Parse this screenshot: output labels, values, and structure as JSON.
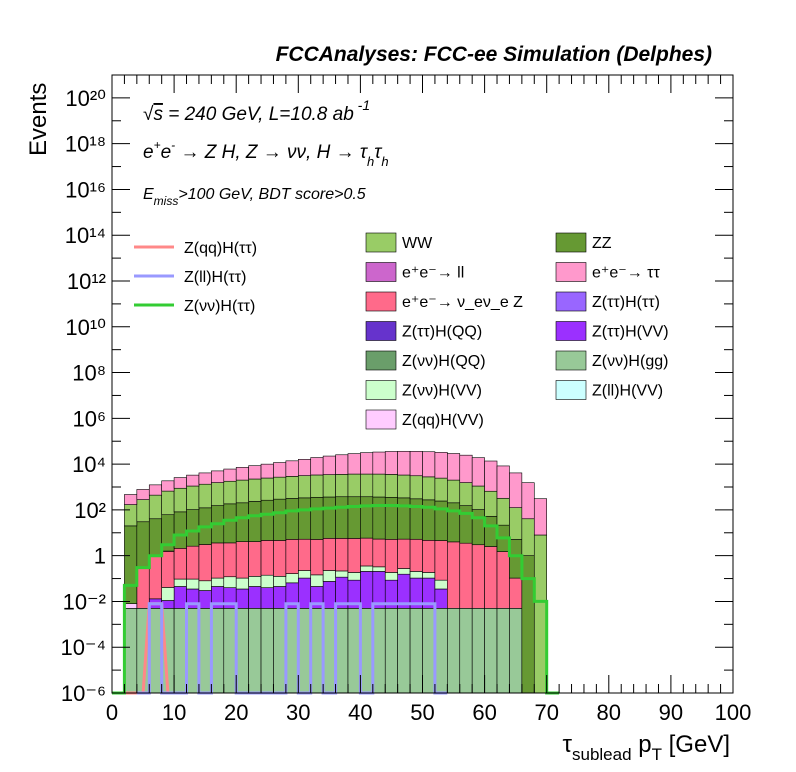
{
  "header": {
    "title": "FCCAnalyses: FCC-ee Simulation (Delphes)"
  },
  "annotations": {
    "line1": "√s = 240 GeV, L=10.8 ab⁻¹",
    "line2": "e⁺e⁻ → Z H, Z → νν, H → τₕτₕ",
    "line3": "E_miss>100 GeV, BDT score>0.5"
  },
  "axes": {
    "ylabel": "Events",
    "xlabel": "τ_sublead p_T [GeV]"
  },
  "chart_data": {
    "type": "area",
    "style": "stacked histogram with overlaid signal lines",
    "title": "FCCAnalyses: FCC-ee Simulation (Delphes)",
    "xlabel": "τ_sublead p_T [GeV]",
    "ylabel": "Events",
    "yscale": "log",
    "xlim": [
      0,
      100
    ],
    "ylim": [
      1e-06,
      1e+21
    ],
    "bin_width": 2,
    "x_ticks": [
      "0",
      "10",
      "20",
      "30",
      "40",
      "50",
      "60",
      "70",
      "80",
      "90",
      "100"
    ],
    "y_ticks": [
      "10⁻⁶",
      "10⁻⁴",
      "10⁻²",
      "1",
      "10²",
      "10⁴",
      "10⁶",
      "10⁸",
      "10¹⁰",
      "10¹²",
      "10¹⁴",
      "10¹⁶",
      "10¹⁸",
      "10²⁰"
    ],
    "stack_series": [
      {
        "name": "Z(νν)H(gg)",
        "color": "#98c998",
        "bin_start": [
          2,
          4,
          6,
          8,
          10,
          12,
          14,
          16,
          18,
          20,
          22,
          24,
          26,
          28,
          30,
          32,
          34,
          36,
          38,
          40,
          42,
          44,
          46,
          48,
          50,
          52,
          54,
          56,
          58,
          60,
          62,
          64
        ],
        "values": [
          0.005,
          0.005,
          0.005,
          0.005,
          0.005,
          0.005,
          0.005,
          0.005,
          0.005,
          0.005,
          0.005,
          0.005,
          0.005,
          0.005,
          0.005,
          0.005,
          0.005,
          0.005,
          0.005,
          0.005,
          0.005,
          0.005,
          0.005,
          0.005,
          0.005,
          0.005,
          0.005,
          0.005,
          0.005,
          0.005,
          0.005,
          0.005
        ]
      },
      {
        "name": "Z(νν)H(QQ)",
        "color": "#6a9e6a",
        "bin_start": [
          2,
          4,
          6,
          8,
          10,
          12,
          14,
          16,
          18,
          20,
          22,
          24,
          26,
          28,
          30,
          32,
          34,
          36,
          38,
          40,
          42,
          44,
          46,
          48,
          50,
          52,
          54,
          56,
          58,
          60,
          62,
          64
        ],
        "values": [
          0,
          0,
          0,
          0,
          0,
          0,
          0,
          0,
          0,
          0,
          0,
          0,
          0,
          0,
          0,
          0,
          0,
          0,
          0,
          0,
          0,
          0,
          0,
          0,
          0,
          0,
          0,
          0,
          0,
          0,
          0,
          0
        ]
      },
      {
        "name": "Z(ττ)H(VV)",
        "color": "#9b30ff",
        "bin_start": [
          6,
          8,
          10,
          12,
          14,
          16,
          18,
          20,
          22,
          24,
          26,
          28,
          30,
          32,
          34,
          36,
          38,
          40,
          42,
          44,
          46,
          48,
          50,
          52
        ],
        "values": [
          0.008,
          0.006,
          0.04,
          0.03,
          0.025,
          0.04,
          0.035,
          0.03,
          0.04,
          0.035,
          0.04,
          0.06,
          0.1,
          0.04,
          0.07,
          0.11,
          0.08,
          0.2,
          0.2,
          0.08,
          0.15,
          0.1,
          0.1,
          0.03
        ]
      },
      {
        "name": "Z(νν)H(VV)",
        "color": "#ccffcc",
        "bin_start": [
          8,
          10,
          12,
          14,
          16,
          18,
          20,
          22,
          24,
          26,
          28,
          30,
          32,
          34,
          36,
          38,
          40,
          42,
          44,
          46,
          48,
          50,
          52
        ],
        "values": [
          0.03,
          0.05,
          0.06,
          0.05,
          0.06,
          0.08,
          0.07,
          0.08,
          0.1,
          0.08,
          0.1,
          0.12,
          0.1,
          0.15,
          0.1,
          0.1,
          0.15,
          0.12,
          0.1,
          0.12,
          0.1,
          0.08,
          0.05
        ]
      },
      {
        "name": "e⁺e⁻→ ν_eν_e Z",
        "color": "#ff6a8a",
        "bin_start": [
          4,
          6,
          8,
          10,
          12,
          14,
          16,
          18,
          20,
          22,
          24,
          26,
          28,
          30,
          32,
          34,
          36,
          38,
          40,
          42,
          44,
          46,
          48,
          50,
          52,
          54,
          56,
          58,
          60,
          62,
          64
        ],
        "values": [
          0.3,
          1,
          1.5,
          2,
          2.5,
          3,
          3.5,
          3.5,
          4,
          4,
          4.5,
          4.5,
          5,
          5,
          5,
          5.5,
          5.5,
          5.5,
          5.5,
          5,
          5,
          5,
          5,
          4.5,
          4.5,
          4,
          3.5,
          3,
          2.5,
          1.5,
          0.1
        ]
      },
      {
        "name": "Z(qq)H(VV)",
        "color": "#ffccff",
        "bin_start": [
          2,
          4,
          8
        ],
        "values": [
          0.003,
          0.01,
          0.05
        ]
      },
      {
        "name": "ZZ",
        "color": "#669933",
        "bin_start": [
          2,
          4,
          6,
          8,
          10,
          12,
          14,
          16,
          18,
          20,
          22,
          24,
          26,
          28,
          30,
          32,
          34,
          36,
          38,
          40,
          42,
          44,
          46,
          48,
          50,
          52,
          54,
          56,
          58,
          60,
          62,
          64,
          66
        ],
        "values": [
          20,
          30,
          40,
          60,
          80,
          100,
          120,
          150,
          180,
          200,
          230,
          260,
          290,
          310,
          330,
          350,
          360,
          370,
          370,
          370,
          360,
          350,
          330,
          300,
          270,
          240,
          200,
          150,
          100,
          50,
          20,
          5,
          1
        ]
      },
      {
        "name": "WW",
        "color": "#99cc66",
        "bin_start": [
          2,
          4,
          6,
          8,
          10,
          12,
          14,
          16,
          18,
          20,
          22,
          24,
          26,
          28,
          30,
          32,
          34,
          36,
          38,
          40,
          42,
          44,
          46,
          48,
          50,
          52,
          54,
          56,
          58,
          60,
          62,
          64,
          66,
          68
        ],
        "values": [
          150,
          250,
          400,
          600,
          800,
          1000,
          1200,
          1400,
          1600,
          1800,
          2000,
          2200,
          2400,
          2600,
          2800,
          3000,
          3100,
          3200,
          3300,
          3300,
          3300,
          3200,
          3000,
          2800,
          2500,
          2200,
          1800,
          1400,
          1000,
          600,
          300,
          120,
          40,
          8
        ]
      },
      {
        "name": "e⁺e⁻→ ττ",
        "color": "#ff99cc",
        "bin_start": [
          2,
          4,
          6,
          8,
          10,
          12,
          14,
          16,
          18,
          20,
          22,
          24,
          26,
          28,
          30,
          32,
          34,
          36,
          38,
          40,
          42,
          44,
          46,
          48,
          50,
          52,
          54,
          56,
          58,
          60,
          62,
          64,
          66,
          68
        ],
        "values": [
          300,
          500,
          800,
          1200,
          1700,
          2200,
          2800,
          3500,
          4300,
          5200,
          6300,
          7500,
          9000,
          11000,
          13000,
          16000,
          19000,
          22000,
          25000,
          28000,
          30000,
          32000,
          33000,
          33000,
          32000,
          30000,
          27000,
          23000,
          18000,
          13000,
          8000,
          4000,
          1500,
          300
        ]
      }
    ],
    "other_legend_entries": [
      {
        "name": "e⁺e⁻→ ll",
        "color": "#cc66cc"
      },
      {
        "name": "Z(ττ)H(ττ)",
        "color": "#9966ff"
      },
      {
        "name": "Z(ττ)H(QQ)",
        "color": "#6633cc"
      },
      {
        "name": "Z(ll)H(VV)",
        "color": "#ccffff"
      }
    ],
    "line_series": [
      {
        "name": "Z(qq)H(ττ)",
        "color": "#ff8888",
        "x": [
          1,
          2,
          3,
          4,
          5,
          6,
          7,
          8,
          9,
          10
        ],
        "y": [
          1e-07,
          1e-07,
          1e-07,
          1e-07,
          1e-07,
          0.008,
          0.008,
          0.008,
          1e-07,
          1e-07
        ]
      },
      {
        "name": "Z(ll)H(ττ)",
        "color": "#9999ff",
        "bin_start": [
          4,
          6,
          8,
          10,
          12,
          14,
          16,
          18,
          20,
          22,
          24,
          26,
          28,
          30,
          32,
          34,
          36,
          38,
          40,
          42,
          44,
          46,
          48,
          50,
          52
        ],
        "values": [
          1e-07,
          0.008,
          1e-07,
          1e-07,
          0.008,
          1e-07,
          0.008,
          0.008,
          1e-07,
          1e-07,
          1e-07,
          1e-07,
          0.008,
          1e-07,
          0.008,
          1e-07,
          0.008,
          0.008,
          1e-07,
          0.008,
          0.008,
          0.008,
          0.008,
          0.008,
          1e-07
        ]
      },
      {
        "name": "Z(νν)H(ττ)",
        "color": "#33cc33",
        "bin_start": [
          0,
          2,
          4,
          6,
          8,
          10,
          12,
          14,
          16,
          18,
          20,
          22,
          24,
          26,
          28,
          30,
          32,
          34,
          36,
          38,
          40,
          42,
          44,
          46,
          48,
          50,
          52,
          54,
          56,
          58,
          60,
          62,
          64,
          66,
          68,
          70
        ],
        "values": [
          1e-07,
          0.05,
          0.3,
          1,
          3,
          8,
          12,
          18,
          25,
          35,
          45,
          55,
          65,
          75,
          90,
          100,
          110,
          120,
          130,
          140,
          150,
          155,
          155,
          150,
          140,
          130,
          110,
          90,
          70,
          45,
          20,
          6,
          1,
          0.1,
          0.01,
          1e-07
        ]
      }
    ]
  },
  "legend": {
    "left": [
      "Z(qq)H(ττ)",
      "Z(ll)H(ττ)",
      "Z(νν)H(ττ)"
    ],
    "col1": [
      "WW",
      "e⁺e⁻→ ll",
      "e⁺e⁻→ ν_eν_e Z",
      "Z(ττ)H(QQ)",
      "Z(νν)H(QQ)",
      "Z(νν)H(VV)",
      "Z(qq)H(VV)"
    ],
    "col2": [
      "ZZ",
      "e⁺e⁻→ ττ",
      "Z(ττ)H(ττ)",
      "Z(ττ)H(VV)",
      "Z(νν)H(gg)",
      "Z(ll)H(VV)"
    ]
  }
}
